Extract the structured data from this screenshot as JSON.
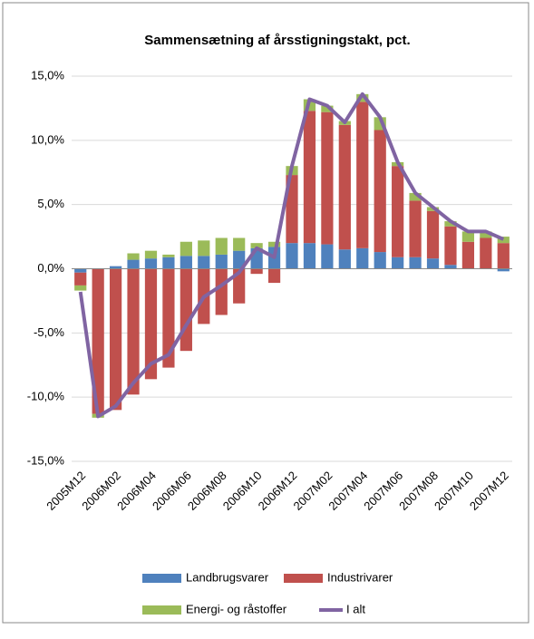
{
  "chart_data": {
    "type": "stacked-bar-line",
    "title": "Sammensætning af årsstigningstakt,  pct.",
    "categories": [
      "2005M12",
      null,
      "2006M02",
      null,
      "2006M04",
      null,
      "2006M06",
      null,
      "2006M08",
      null,
      "2006M10",
      null,
      "2006M12",
      null,
      "2007M02",
      null,
      "2007M04",
      null,
      "2007M06",
      null,
      "2007M08",
      null,
      "2007M10",
      null,
      "2007M12"
    ],
    "series": [
      {
        "name": "Landbrugsvarer",
        "color": "#4f81bd",
        "kind": "bar",
        "values": [
          -0.3,
          0.0,
          0.2,
          0.7,
          0.8,
          0.9,
          1.0,
          1.0,
          1.1,
          1.4,
          1.6,
          1.7,
          2.0,
          2.0,
          1.9,
          1.5,
          1.6,
          1.3,
          0.9,
          0.9,
          0.8,
          0.3,
          0.0,
          0.0,
          -0.2
        ]
      },
      {
        "name": "Industrivarer",
        "color": "#c0504d",
        "kind": "bar",
        "values": [
          -1.0,
          -11.3,
          -11.0,
          -9.8,
          -8.6,
          -7.7,
          -6.4,
          -4.3,
          -3.6,
          -2.7,
          -0.4,
          -1.1,
          5.3,
          10.3,
          10.3,
          9.7,
          11.4,
          9.5,
          7.1,
          4.4,
          3.7,
          3.0,
          2.1,
          2.4,
          2.0
        ]
      },
      {
        "name": "Energi- og råstoffer",
        "color": "#9bbb59",
        "kind": "bar",
        "values": [
          -0.4,
          -0.3,
          0.0,
          0.5,
          0.6,
          0.2,
          1.1,
          1.2,
          1.3,
          1.0,
          0.4,
          0.4,
          0.7,
          0.9,
          0.5,
          0.3,
          0.6,
          1.0,
          0.3,
          0.6,
          0.3,
          0.4,
          0.8,
          0.5,
          0.5
        ]
      },
      {
        "name": "I alt",
        "color": "#8064a2",
        "kind": "line",
        "values": [
          -1.8,
          -11.5,
          -10.7,
          -8.9,
          -7.4,
          -6.7,
          -4.4,
          -2.2,
          -1.3,
          -0.3,
          1.6,
          0.9,
          8.0,
          13.2,
          12.7,
          11.4,
          13.6,
          11.8,
          8.3,
          5.9,
          4.8,
          3.7,
          2.9,
          2.9,
          2.3
        ]
      }
    ],
    "ylim": [
      -15,
      15
    ],
    "yticks": [
      {
        "value": -15,
        "label": "-15,0%"
      },
      {
        "value": -10,
        "label": "-10,0%"
      },
      {
        "value": -5,
        "label": "-5,0%"
      },
      {
        "value": 0,
        "label": "0,0%"
      },
      {
        "value": 5,
        "label": "5,0%"
      },
      {
        "value": 10,
        "label": "10,0%"
      },
      {
        "value": 15,
        "label": "15,0%"
      }
    ],
    "grid": true
  }
}
